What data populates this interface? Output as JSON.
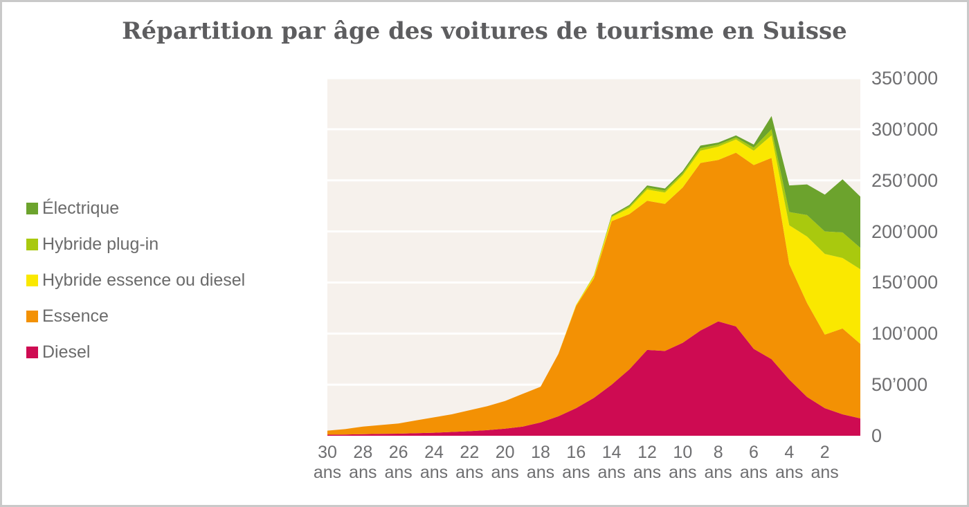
{
  "title": "Répartition par âge des voitures de tourisme en Suisse",
  "colors": {
    "card_border": "#c9c9c9",
    "card_background": "#ffffff",
    "plot_background": "#f6f1ec",
    "grid": "#ffffff",
    "title_text": "#5d5d5f",
    "axis_text": "#6e6e70",
    "legend_text": "#6b6b6b"
  },
  "legend": {
    "items": [
      {
        "label": "Électrique",
        "color": "#6ca32d"
      },
      {
        "label": "Hybride plug-in",
        "color": "#a9c90e"
      },
      {
        "label": "Hybride essence ou diesel",
        "color": "#fae800"
      },
      {
        "label": "Essence",
        "color": "#f39104"
      },
      {
        "label": "Diesel",
        "color": "#ce0b52"
      }
    ]
  },
  "chart_data": {
    "type": "area",
    "stacked": true,
    "title": "Répartition par âge des voitures de tourisme en Suisse",
    "xlabel": "",
    "ylabel": "",
    "x_unit": "ans",
    "x": [
      30,
      29,
      28,
      27,
      26,
      25,
      24,
      23,
      22,
      21,
      20,
      19,
      18,
      17,
      16,
      15,
      14,
      13,
      12,
      11,
      10,
      9,
      8,
      7,
      6,
      5,
      4,
      3,
      2,
      1,
      0
    ],
    "x_ticks": [
      30,
      28,
      26,
      24,
      22,
      20,
      18,
      16,
      14,
      12,
      10,
      8,
      6,
      4,
      2
    ],
    "ylim": [
      0,
      350000
    ],
    "y_tick_step": 50000,
    "y_tick_labels": [
      "0",
      "50’000",
      "100’000",
      "150’000",
      "200’000",
      "250’000",
      "300’000",
      "350’000"
    ],
    "grid": true,
    "legend_position": "left",
    "series": [
      {
        "name": "Diesel",
        "color": "#ce0b52",
        "values": [
          1000,
          1200,
          1500,
          1800,
          2000,
          2500,
          3000,
          3700,
          4500,
          5500,
          7000,
          9000,
          13000,
          19000,
          27000,
          37000,
          50000,
          65000,
          84000,
          83000,
          91000,
          103000,
          112000,
          107000,
          85000,
          75000,
          55000,
          38000,
          27000,
          21000,
          17000
        ]
      },
      {
        "name": "Essence",
        "color": "#f39104",
        "values": [
          4000,
          5300,
          7500,
          8700,
          10000,
          12500,
          15000,
          17300,
          20500,
          23500,
          27000,
          32000,
          35000,
          61000,
          100000,
          117000,
          160000,
          152000,
          146000,
          144000,
          152000,
          164000,
          158000,
          170000,
          180000,
          197000,
          113000,
          92000,
          72000,
          84000,
          73000
        ]
      },
      {
        "name": "Hybride essence ou diesel",
        "color": "#fae800",
        "values": [
          0,
          0,
          0,
          0,
          0,
          0,
          0,
          0,
          0,
          0,
          0,
          0,
          0,
          0,
          1000,
          2000,
          4000,
          6000,
          11000,
          11000,
          12000,
          12000,
          13000,
          13000,
          14000,
          22000,
          38000,
          65000,
          79000,
          69000,
          73000
        ]
      },
      {
        "name": "Hybride plug-in",
        "color": "#a9c90e",
        "values": [
          0,
          0,
          0,
          0,
          0,
          0,
          0,
          0,
          0,
          0,
          0,
          0,
          0,
          0,
          0,
          1000,
          1000,
          1500,
          2000,
          2000,
          2000,
          2500,
          2000,
          2000,
          3000,
          6000,
          13000,
          21000,
          22000,
          25000,
          21000
        ]
      },
      {
        "name": "Électrique",
        "color": "#6ca32d",
        "values": [
          0,
          0,
          0,
          0,
          0,
          0,
          0,
          0,
          0,
          0,
          0,
          0,
          0,
          0,
          0,
          0,
          1000,
          1500,
          2000,
          2000,
          2000,
          2500,
          2000,
          2000,
          3000,
          13000,
          26000,
          30000,
          36000,
          52000,
          50000
        ]
      }
    ]
  }
}
